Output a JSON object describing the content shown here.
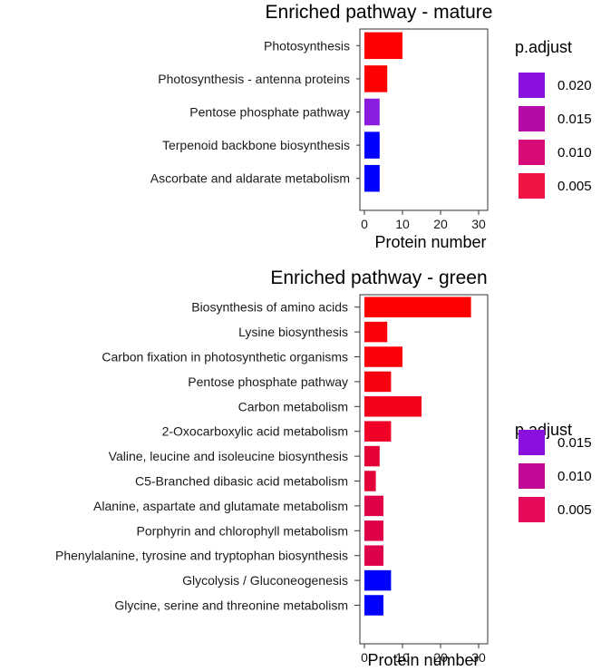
{
  "chart_data": [
    {
      "type": "bar",
      "orientation": "horizontal",
      "title": "Enriched pathway - mature",
      "xlabel": "Protein number",
      "ylabel": "",
      "xlim": [
        0,
        30
      ],
      "xticks": [
        0,
        10,
        20,
        30
      ],
      "grid": false,
      "legend_position": "right",
      "categories": [
        "Photosynthesis",
        "Photosynthesis - antenna proteins",
        "Pentose phosphate pathway",
        "Terpenoid backbone biosynthesis",
        "Ascorbate and aldarate metabolism"
      ],
      "values": [
        10,
        6,
        4,
        4,
        4
      ],
      "bar_colors": [
        "#ff0000",
        "#ff0000",
        "#8a1de0",
        "#0000ff",
        "#0000ff"
      ],
      "legend": {
        "title": "p.adjust",
        "entries": [
          {
            "label": "0.020",
            "color": "#8a10dd"
          },
          {
            "label": "0.015",
            "color": "#b50aa6"
          },
          {
            "label": "0.010",
            "color": "#d80a77"
          },
          {
            "label": "0.005",
            "color": "#f01444"
          }
        ]
      }
    },
    {
      "type": "bar",
      "orientation": "horizontal",
      "title": "Enriched pathway - green",
      "xlabel": "Protein number",
      "ylabel": "",
      "xlim": [
        0,
        30
      ],
      "xticks": [
        0,
        10,
        20,
        30
      ],
      "grid": false,
      "legend_position": "right",
      "categories": [
        "Biosynthesis of amino acids",
        "Lysine biosynthesis",
        "Carbon fixation in photosynthetic organisms",
        "Pentose phosphate pathway",
        "Carbon metabolism",
        "2-Oxocarboxylic acid metabolism",
        "Valine, leucine and isoleucine biosynthesis",
        "C5-Branched dibasic acid metabolism",
        "Alanine, aspartate and glutamate metabolism",
        "Porphyrin and chlorophyll metabolism",
        "Phenylalanine, tyrosine and tryptophan biosynthesis",
        "Glycolysis / Gluconeogenesis",
        "Glycine, serine and threonine metabolism"
      ],
      "values": [
        28,
        6,
        10,
        7,
        15,
        7,
        4,
        3,
        5,
        5,
        5,
        7,
        5
      ],
      "bar_colors": [
        "#ff0000",
        "#fb0008",
        "#fb0008",
        "#f7000f",
        "#f3001a",
        "#ef0026",
        "#e40036",
        "#e40038",
        "#df0048",
        "#df0048",
        "#df004a",
        "#0000ff",
        "#0000ff"
      ],
      "legend": {
        "title": "p.adjust",
        "entries": [
          {
            "label": "0.015",
            "color": "#8a10dd"
          },
          {
            "label": "0.010",
            "color": "#c00a97"
          },
          {
            "label": "0.005",
            "color": "#e80a5a"
          }
        ]
      }
    }
  ]
}
